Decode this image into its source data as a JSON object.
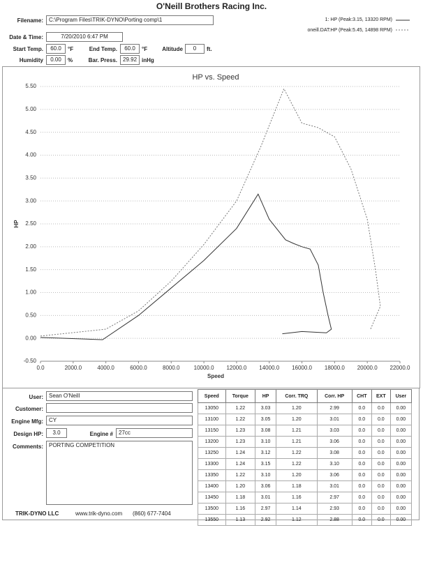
{
  "header": {
    "title": "O'Neill Brothers Racing Inc."
  },
  "fields": {
    "filename": {
      "label": "Filename:",
      "value": "C:\\Program Files\\TRIK-DYNO\\Porting comp\\1"
    },
    "date": {
      "label": "Date & Time:",
      "value": "7/20/2010 6:47 PM"
    },
    "start_temp": {
      "label": "Start Temp.",
      "value": "60.0",
      "unit": "°F"
    },
    "end_temp": {
      "label": "End Temp.",
      "value": "60.0",
      "unit": "°F"
    },
    "altitude": {
      "label": "Altitude",
      "value": "0",
      "unit": "ft."
    },
    "humidity": {
      "label": "Humidity",
      "value": "0.00",
      "unit": "%"
    },
    "bar_press": {
      "label": "Bar. Press.",
      "value": "29.92",
      "unit": "inHg"
    }
  },
  "chart_data": {
    "type": "line",
    "title": "HP vs. Speed",
    "x_label": "Speed",
    "y_label": "HP",
    "grid": true,
    "xlim": [
      0,
      22000
    ],
    "ylim": [
      -0.5,
      5.5
    ],
    "xticks": [
      {
        "value": 0,
        "label": "0.0"
      },
      {
        "value": 2000,
        "label": "2000.0"
      },
      {
        "value": 4000,
        "label": "4000.0"
      },
      {
        "value": 6000,
        "label": "6000.0"
      },
      {
        "value": 8000,
        "label": "8000.0"
      },
      {
        "value": 10000,
        "label": "10000.0"
      },
      {
        "value": 12000,
        "label": "12000.0"
      },
      {
        "value": 14000,
        "label": "14000.0"
      },
      {
        "value": 16000,
        "label": "16000.0"
      },
      {
        "value": 18000,
        "label": "18000.0"
      },
      {
        "value": 20000,
        "label": "20000.0"
      },
      {
        "value": 22000,
        "label": "22000.0"
      }
    ],
    "yticks": [
      {
        "value": -0.5,
        "label": "-0.50"
      },
      {
        "value": 0,
        "label": "0.00"
      },
      {
        "value": 0.5,
        "label": "0.50"
      },
      {
        "value": 1,
        "label": "1.00"
      },
      {
        "value": 1.5,
        "label": "1.50"
      },
      {
        "value": 2,
        "label": "2.00"
      },
      {
        "value": 2.5,
        "label": "2.50"
      },
      {
        "value": 3,
        "label": "3.00"
      },
      {
        "value": 3.5,
        "label": "3.50"
      },
      {
        "value": 4,
        "label": "4.00"
      },
      {
        "value": 4.5,
        "label": "4.50"
      },
      {
        "value": 5,
        "label": "5.00"
      },
      {
        "value": 5.5,
        "label": "5.50"
      }
    ],
    "series": [
      {
        "name": "1: HP (Peak:3.15, 13320 RPM)",
        "color": "#333333",
        "line_style": "solid",
        "x": [
          0,
          3800,
          6000,
          8000,
          10000,
          12000,
          13320,
          14000,
          15000,
          15500,
          16000,
          16500,
          17000,
          17300,
          17600,
          17800,
          17500,
          16000,
          14800
        ],
        "values": [
          0.02,
          -0.03,
          0.5,
          1.1,
          1.7,
          2.4,
          3.15,
          2.6,
          2.15,
          2.07,
          2.0,
          1.95,
          1.6,
          1.0,
          0.5,
          0.2,
          0.12,
          0.15,
          0.1
        ]
      },
      {
        "name": "oneill.DAT:HP (Peak:5.45, 14898 RPM)",
        "color": "#777777",
        "line_style": "dotted",
        "x": [
          0,
          4000,
          6000,
          8000,
          10000,
          12000,
          13500,
          14898,
          16000,
          17000,
          18000,
          19000,
          20000,
          20500,
          20800,
          20200
        ],
        "values": [
          0.05,
          0.2,
          0.6,
          1.25,
          2.05,
          3.0,
          4.2,
          5.45,
          4.7,
          4.6,
          4.4,
          3.7,
          2.6,
          1.5,
          0.7,
          0.2
        ]
      }
    ]
  },
  "form": {
    "user": {
      "label": "User:",
      "value": "Sean O'Neill"
    },
    "customer": {
      "label": "Customer:"
    },
    "engine_mfg": {
      "label": "Engine Mfg:",
      "value": "CY"
    },
    "design_hp": {
      "label": "Design HP:",
      "value": "3.0"
    },
    "engine_no": {
      "label": "Engine #",
      "value": "27cc"
    },
    "comments": {
      "label": "Comments:",
      "value": "PORTING COMPETITION"
    }
  },
  "table": {
    "header": [
      "Speed",
      "Torque",
      "HP",
      "Corr. TRQ",
      "Corr. HP",
      "CHT",
      "EXT",
      "User"
    ],
    "rows": [
      [
        "13050",
        "1.22",
        "3.03",
        "1.20",
        "2.99",
        "0.0",
        "0.0",
        "0.00"
      ],
      [
        "13100",
        "1.22",
        "3.05",
        "1.20",
        "3.01",
        "0.0",
        "0.0",
        "0.00"
      ],
      [
        "13150",
        "1.23",
        "3.08",
        "1.21",
        "3.03",
        "0.0",
        "0.0",
        "0.00"
      ],
      [
        "13200",
        "1.23",
        "3.10",
        "1.21",
        "3.06",
        "0.0",
        "0.0",
        "0.00"
      ],
      [
        "13250",
        "1.24",
        "3.12",
        "1.22",
        "3.08",
        "0.0",
        "0.0",
        "0.00"
      ],
      [
        "13300",
        "1.24",
        "3.15",
        "1.22",
        "3.10",
        "0.0",
        "0.0",
        "0.00"
      ],
      [
        "13350",
        "1.22",
        "3.10",
        "1.20",
        "3.06",
        "0.0",
        "0.0",
        "0.00"
      ],
      [
        "13400",
        "1.20",
        "3.06",
        "1.18",
        "3.01",
        "0.0",
        "0.0",
        "0.00"
      ],
      [
        "13450",
        "1.18",
        "3.01",
        "1.16",
        "2.97",
        "0.0",
        "0.0",
        "0.00"
      ],
      [
        "13500",
        "1.16",
        "2.97",
        "1.14",
        "2.93",
        "0.0",
        "0.0",
        "0.00"
      ],
      [
        "13550",
        "1.13",
        "2.92",
        "1.12",
        "2.88",
        "0.0",
        "0.0",
        "0.00"
      ]
    ]
  },
  "footer": {
    "company": "TRIK-DYNO LLC",
    "website": "www.trik-dyno.com",
    "phone": "(860) 677-7404"
  }
}
